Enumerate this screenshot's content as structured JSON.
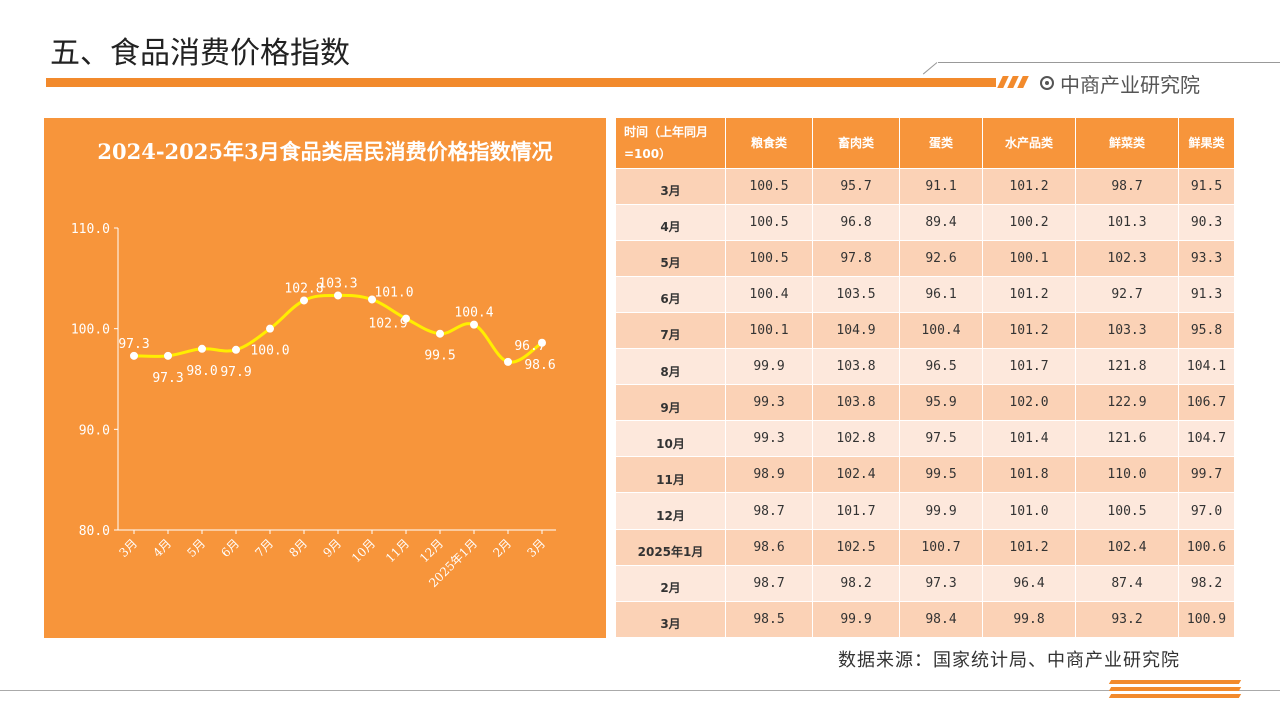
{
  "page": {
    "title": "五、食品消费价格指数",
    "brand": "中商产业研究院",
    "source": "数据来源：国家统计局、中商产业研究院"
  },
  "colors": {
    "accent": "#f28a2c",
    "panel": "#f7953b",
    "line": "#ffee00",
    "row_dark": "#fbd2b6",
    "row_light": "#fde8dc"
  },
  "chart_data": {
    "type": "line",
    "title": "2024-2025年3月食品类居民消费价格指数情况",
    "categories": [
      "3月",
      "4月",
      "5月",
      "6月",
      "7月",
      "8月",
      "9月",
      "10月",
      "11月",
      "12月",
      "2025年1月",
      "2月",
      "3月"
    ],
    "series": [
      {
        "values": [
          97.3,
          97.3,
          98.0,
          97.9,
          100.0,
          102.8,
          103.3,
          102.9,
          101.0,
          99.5,
          100.4,
          96.7,
          98.6
        ]
      }
    ],
    "ylim": [
      80.0,
      110.0
    ],
    "yticks": [
      "80.0",
      "90.0",
      "100.0",
      "110.0"
    ],
    "data_labels": [
      "97.3",
      "97.3",
      "98.0",
      "97.9",
      "100.0",
      "102.8",
      "103.3",
      "102.9",
      "101.0",
      "99.5",
      "100.4",
      "96.7",
      "98.6"
    ],
    "grid": false,
    "legend": "none"
  },
  "table": {
    "headers": [
      "时间（上年同月=100）",
      "粮食类",
      "畜肉类",
      "蛋类",
      "水产品类",
      "鲜菜类",
      "鲜果类"
    ],
    "rows": [
      {
        "label": "3月",
        "values": [
          "100.5",
          "95.7",
          "91.1",
          "101.2",
          "98.7",
          "91.5"
        ]
      },
      {
        "label": "4月",
        "values": [
          "100.5",
          "96.8",
          "89.4",
          "100.2",
          "101.3",
          "90.3"
        ]
      },
      {
        "label": "5月",
        "values": [
          "100.5",
          "97.8",
          "92.6",
          "100.1",
          "102.3",
          "93.3"
        ]
      },
      {
        "label": "6月",
        "values": [
          "100.4",
          "103.5",
          "96.1",
          "101.2",
          "92.7",
          "91.3"
        ]
      },
      {
        "label": "7月",
        "values": [
          "100.1",
          "104.9",
          "100.4",
          "101.2",
          "103.3",
          "95.8"
        ]
      },
      {
        "label": "8月",
        "values": [
          "99.9",
          "103.8",
          "96.5",
          "101.7",
          "121.8",
          "104.1"
        ]
      },
      {
        "label": "9月",
        "values": [
          "99.3",
          "103.8",
          "95.9",
          "102.0",
          "122.9",
          "106.7"
        ]
      },
      {
        "label": "10月",
        "values": [
          "99.3",
          "102.8",
          "97.5",
          "101.4",
          "121.6",
          "104.7"
        ]
      },
      {
        "label": "11月",
        "values": [
          "98.9",
          "102.4",
          "99.5",
          "101.8",
          "110.0",
          "99.7"
        ]
      },
      {
        "label": "12月",
        "values": [
          "98.7",
          "101.7",
          "99.9",
          "101.0",
          "100.5",
          "97.0"
        ]
      },
      {
        "label": "2025年1月",
        "values": [
          "98.6",
          "102.5",
          "100.7",
          "101.2",
          "102.4",
          "100.6"
        ]
      },
      {
        "label": "2月",
        "values": [
          "98.7",
          "98.2",
          "97.3",
          "96.4",
          "87.4",
          "98.2"
        ]
      },
      {
        "label": "3月",
        "values": [
          "98.5",
          "99.9",
          "98.4",
          "99.8",
          "93.2",
          "100.9"
        ]
      }
    ]
  }
}
